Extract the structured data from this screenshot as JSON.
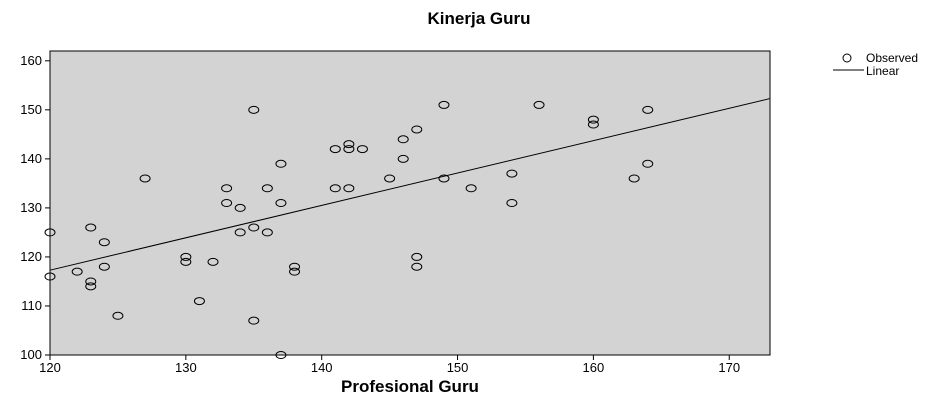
{
  "chart_data": {
    "type": "scatter",
    "title": "Kinerja Guru",
    "xlabel": "Profesional Guru",
    "ylabel": "",
    "xlim": [
      120,
      173
    ],
    "ylim": [
      100,
      162
    ],
    "xticks": [
      120,
      130,
      140,
      150,
      160,
      170
    ],
    "yticks": [
      100,
      110,
      120,
      130,
      140,
      150,
      160
    ],
    "grid": false,
    "plot_background": "#d3d3d3",
    "legend": {
      "placement": "top-right-outside",
      "entries": [
        {
          "label": "Observed",
          "marker": "circle-open"
        },
        {
          "label": "Linear",
          "marker": "line"
        }
      ]
    },
    "series": [
      {
        "name": "Observed",
        "points": [
          [
            120,
            125
          ],
          [
            120,
            116
          ],
          [
            122,
            117
          ],
          [
            123,
            126
          ],
          [
            123,
            115
          ],
          [
            123,
            114
          ],
          [
            124,
            123
          ],
          [
            124,
            118
          ],
          [
            125,
            108
          ],
          [
            127,
            136
          ],
          [
            130,
            120
          ],
          [
            130,
            119
          ],
          [
            131,
            111
          ],
          [
            132,
            119
          ],
          [
            133,
            134
          ],
          [
            133,
            131
          ],
          [
            134,
            130
          ],
          [
            134,
            125
          ],
          [
            135,
            150
          ],
          [
            135,
            126
          ],
          [
            135,
            107
          ],
          [
            136,
            134
          ],
          [
            136,
            125
          ],
          [
            137,
            139
          ],
          [
            137,
            131
          ],
          [
            137,
            100
          ],
          [
            138,
            118
          ],
          [
            138,
            117
          ],
          [
            141,
            142
          ],
          [
            141,
            134
          ],
          [
            142,
            143
          ],
          [
            142,
            142
          ],
          [
            142,
            134
          ],
          [
            143,
            142
          ],
          [
            145,
            136
          ],
          [
            146,
            144
          ],
          [
            146,
            140
          ],
          [
            147,
            146
          ],
          [
            147,
            120
          ],
          [
            147,
            118
          ],
          [
            149,
            151
          ],
          [
            149,
            136
          ],
          [
            151,
            134
          ],
          [
            154,
            137
          ],
          [
            154,
            131
          ],
          [
            156,
            151
          ],
          [
            160,
            148
          ],
          [
            160,
            147
          ],
          [
            163,
            136
          ],
          [
            164,
            150
          ],
          [
            164,
            139
          ]
        ]
      },
      {
        "name": "Linear",
        "line": [
          [
            120,
            117.3
          ],
          [
            173,
            152.3
          ]
        ]
      }
    ]
  }
}
